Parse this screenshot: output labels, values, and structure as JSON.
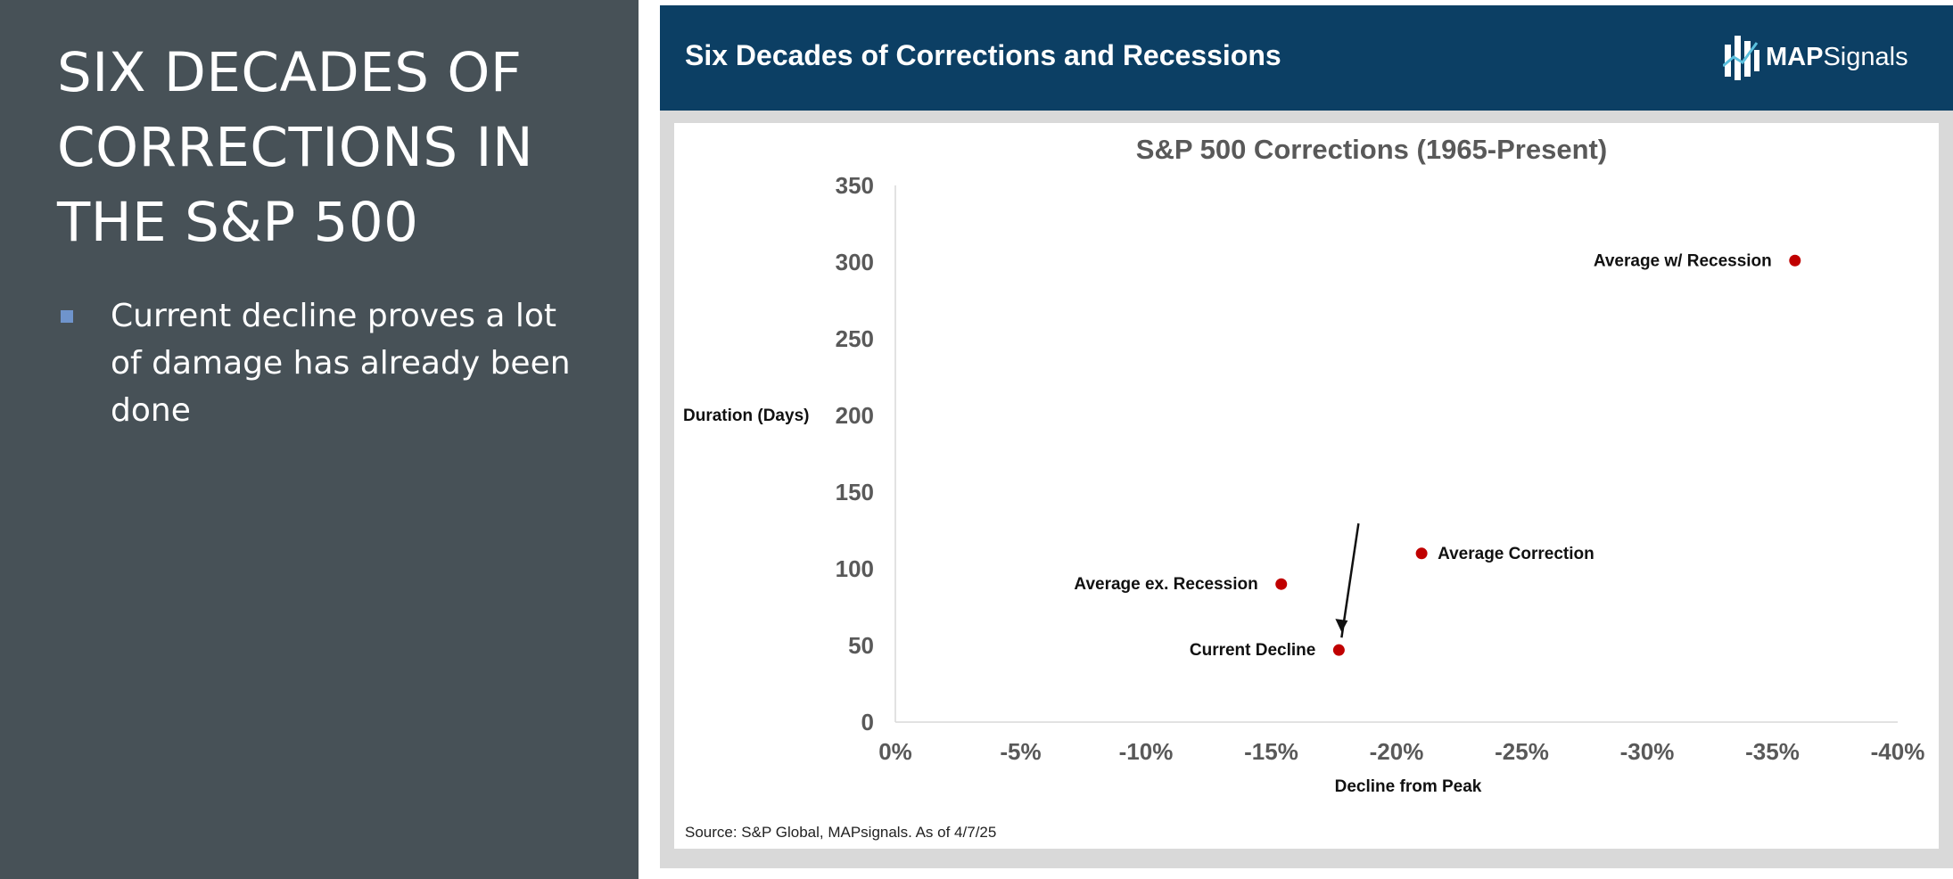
{
  "left": {
    "title": "SIX DECADES OF CORRECTIONS IN THE S&P 500",
    "bullet": "Current decline proves a lot of damage has already been done"
  },
  "header": {
    "title": "Six Decades of Corrections and Recessions",
    "logo_bold": "MAP",
    "logo_rest": "Signals"
  },
  "source": "Source: S&P Global, MAPsignals. As of 4/7/25",
  "colors": {
    "left_panel": "#475157",
    "header": "#0c3f64",
    "point": "#c00000",
    "bullet": "#6f94cc"
  },
  "chart_data": {
    "type": "scatter",
    "title": "S&P 500 Corrections (1965-Present)",
    "xlabel": "Decline from Peak",
    "ylabel": "Duration (Days)",
    "xlim": [
      0,
      -40
    ],
    "ylim": [
      0,
      350
    ],
    "x_ticks": [
      "0%",
      "-5%",
      "-10%",
      "-15%",
      "-20%",
      "-25%",
      "-30%",
      "-35%",
      "-40%"
    ],
    "y_ticks": [
      "0",
      "50",
      "100",
      "150",
      "200",
      "250",
      "300",
      "350"
    ],
    "points": [
      {
        "label": "Average w/ Recession",
        "x": -35.9,
        "y": 301,
        "label_side": "left"
      },
      {
        "label": "Average Correction",
        "x": -21.0,
        "y": 110,
        "label_side": "right"
      },
      {
        "label": "Average ex. Recession",
        "x": -15.4,
        "y": 90,
        "label_side": "left"
      },
      {
        "label": "Current Decline",
        "x": -17.7,
        "y": 47,
        "label_side": "left",
        "arrow": true
      }
    ]
  }
}
